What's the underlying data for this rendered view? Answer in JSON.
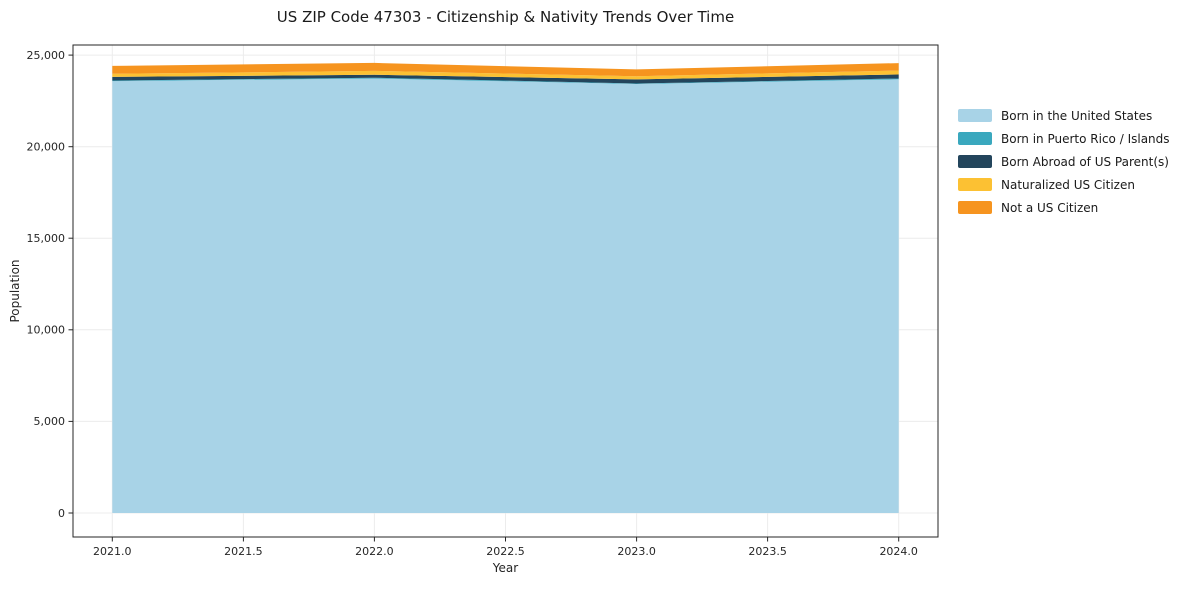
{
  "title": "US ZIP Code 47303 - Citizenship & Nativity Trends Over Time",
  "chart_data": {
    "type": "area",
    "stacked": true,
    "title": "US ZIP Code 47303 - Citizenship & Nativity Trends Over Time",
    "xlabel": "Year",
    "ylabel": "Population",
    "x": [
      2021,
      2022,
      2023,
      2024
    ],
    "series": [
      {
        "name": "Born in the United States",
        "color": "#a8d3e7",
        "values": [
          23580,
          23720,
          23420,
          23680
        ]
      },
      {
        "name": "Born in Puerto Rico / Islands",
        "color": "#3aa8be",
        "values": [
          30,
          45,
          30,
          40
        ]
      },
      {
        "name": "Born Abroad of US Parent(s)",
        "color": "#23455c",
        "values": [
          200,
          160,
          220,
          220
        ]
      },
      {
        "name": "Naturalized US Citizen",
        "color": "#fcc133",
        "values": [
          170,
          210,
          170,
          220
        ]
      },
      {
        "name": "Not a US Citizen",
        "color": "#f6941f",
        "values": [
          430,
          440,
          380,
          400
        ]
      }
    ],
    "totals": [
      24410,
      24575,
      24220,
      24560
    ],
    "xlim": [
      2020.85,
      2024.15
    ],
    "ylim": [
      -1310,
      25550
    ],
    "xticks": {
      "values": [
        2021.0,
        2021.5,
        2022.0,
        2022.5,
        2023.0,
        2023.5,
        2024.0
      ],
      "labels": [
        "2021.0",
        "2021.5",
        "2022.0",
        "2022.5",
        "2023.0",
        "2023.5",
        "2024.0"
      ]
    },
    "yticks": {
      "values": [
        0,
        5000,
        10000,
        15000,
        20000,
        25000
      ],
      "labels": [
        "0",
        "5,000",
        "10,000",
        "15,000",
        "20,000",
        "25,000"
      ]
    },
    "grid": true,
    "grid_color": "#ececec",
    "spine_color": "#262626",
    "legend_position": "right-outside"
  }
}
